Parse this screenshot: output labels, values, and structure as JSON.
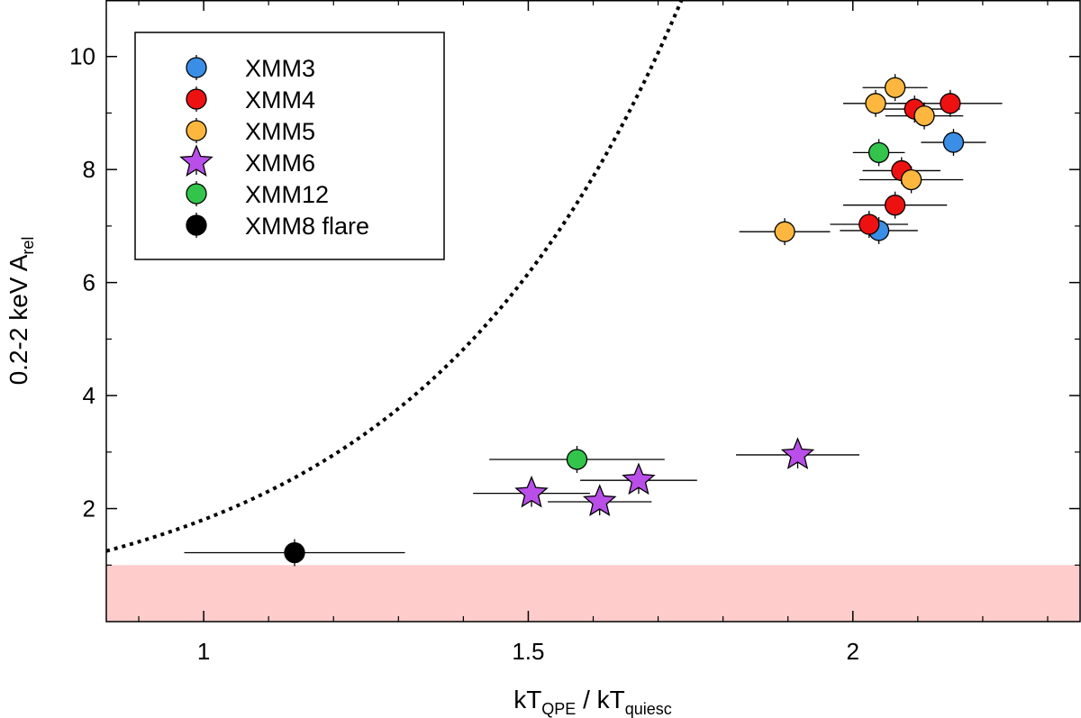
{
  "chart_data": {
    "type": "scatter",
    "xlabel_main": "kT",
    "xlabel_sub1": "QPE",
    "xlabel_sep": " / kT",
    "xlabel_sub2": "quiesc",
    "ylabel_main": "0.2-2 keV A",
    "ylabel_sub": "rel",
    "xlim": [
      0.85,
      2.35
    ],
    "ylim": [
      0.0,
      11.0
    ],
    "x_ticks": [
      1,
      1.5,
      2
    ],
    "x_tick_labels": [
      "1",
      "1.5",
      "2"
    ],
    "y_ticks": [
      2,
      4,
      6,
      8,
      10
    ],
    "y_tick_labels": [
      "2",
      "4",
      "6",
      "8",
      "10"
    ],
    "shaded_band": {
      "y_from": 0.0,
      "y_to": 1.0,
      "color": "#ffcccc"
    },
    "model_curve": {
      "style": "dotted",
      "x0": 0.85,
      "x1": 2.32,
      "A": 0.155,
      "B": 2.455
    },
    "legend_position": "top-left",
    "series": [
      {
        "name": "XMM3",
        "marker": "circle",
        "color": "#3a8ee6",
        "points": [
          {
            "x": 2.155,
            "y": 8.48,
            "xerr": 0.05
          },
          {
            "x": 2.04,
            "y": 6.92,
            "xerr": 0.06
          }
        ]
      },
      {
        "name": "XMM4",
        "marker": "circle",
        "color": "#ee1111",
        "points": [
          {
            "x": 2.15,
            "y": 9.17,
            "xerr": 0.08
          },
          {
            "x": 2.095,
            "y": 9.07,
            "xerr": 0.07
          },
          {
            "x": 2.075,
            "y": 7.98,
            "xerr": 0.06
          },
          {
            "x": 2.065,
            "y": 7.37,
            "xerr": 0.08
          },
          {
            "x": 2.025,
            "y": 7.03,
            "xerr": 0.06
          }
        ]
      },
      {
        "name": "XMM5",
        "marker": "circle",
        "color": "#fdb73e",
        "points": [
          {
            "x": 2.065,
            "y": 9.45,
            "xerr": 0.05
          },
          {
            "x": 2.035,
            "y": 9.17,
            "xerr": 0.05
          },
          {
            "x": 2.11,
            "y": 8.95,
            "xerr": 0.06
          },
          {
            "x": 2.09,
            "y": 7.82,
            "xerr": 0.08
          },
          {
            "x": 1.895,
            "y": 6.9,
            "xerr": 0.07
          }
        ]
      },
      {
        "name": "XMM6",
        "marker": "star",
        "color": "#b94fe8",
        "points": [
          {
            "x": 1.915,
            "y": 2.95,
            "xerr": 0.095
          },
          {
            "x": 1.67,
            "y": 2.5,
            "xerr": 0.09
          },
          {
            "x": 1.505,
            "y": 2.27,
            "xerr": 0.09
          },
          {
            "x": 1.61,
            "y": 2.12,
            "xerr": 0.08
          }
        ]
      },
      {
        "name": "XMM12",
        "marker": "circle",
        "color": "#33c44b",
        "points": [
          {
            "x": 2.04,
            "y": 8.3,
            "xerr": 0.04
          },
          {
            "x": 1.575,
            "y": 2.87,
            "xerr": 0.135
          }
        ]
      },
      {
        "name": "XMM8 flare",
        "marker": "circle",
        "color": "#000000",
        "points": [
          {
            "x": 1.14,
            "y": 1.22,
            "xerr": 0.17
          }
        ]
      }
    ]
  }
}
